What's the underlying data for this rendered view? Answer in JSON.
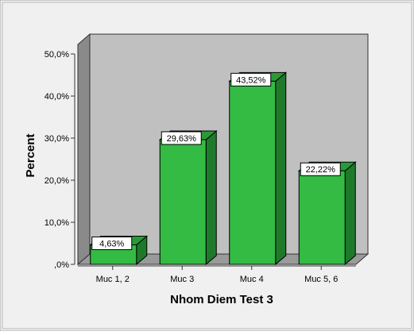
{
  "chart_data": {
    "type": "bar",
    "xlabel": "Nhom Diem Test 3",
    "ylabel": "Percent",
    "categories": [
      "Muc 1, 2",
      "Muc 3",
      "Muc 4",
      "Muc 5, 6"
    ],
    "values": [
      4.63,
      29.63,
      43.52,
      22.22
    ],
    "data_labels": [
      "4,63%",
      "29,63%",
      "43,52%",
      "22,22%"
    ],
    "yticks": [
      0,
      10,
      20,
      30,
      40,
      50
    ],
    "ytick_labels": [
      ",0%",
      "10,0%",
      "20,0%",
      "30,0%",
      "40,0%",
      "50,0%"
    ],
    "ylim": [
      0,
      50
    ],
    "grid": false,
    "legend": "none",
    "style": "3d",
    "colors": {
      "bar_front": "#33bb44",
      "bar_side": "#1e7a2a",
      "bar_top": "#2a9a38",
      "wall": "#c0c0c0",
      "wall_side": "#8a8a8a",
      "floor": "#9a9a9a",
      "background": "#f0f0f0"
    }
  }
}
